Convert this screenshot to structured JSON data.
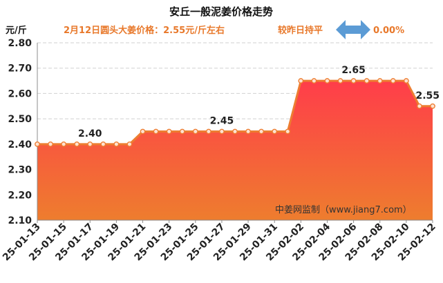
{
  "header": {
    "title": "安丘一般泥姜价格走势",
    "unit": "元/斤",
    "headline_price": "2月12日圆头大姜价格：2.55元/斤左右",
    "headline_trend": "较昨日持平",
    "headline_change": "0.00%",
    "trend_icon": "double-arrow-icon"
  },
  "watermark": "中姜网监制（www.jiang7.com）",
  "colors": {
    "headline": "#E8782A",
    "arrow": "#5B9BD5",
    "line": "#ED7D31",
    "fill_top": "#FF3D4A",
    "fill_bottom": "#EE7D2E",
    "grid": "#D0D0D0"
  },
  "chart_data": {
    "type": "area",
    "title": "安丘一般泥姜价格走势",
    "ylabel": "元/斤",
    "xlabel": "",
    "ylim": [
      2.1,
      2.8
    ],
    "yticks": [
      "2.10",
      "2.20",
      "2.30",
      "2.40",
      "2.50",
      "2.60",
      "2.70",
      "2.80"
    ],
    "grid": true,
    "x": [
      "25-01-13",
      "25-01-14",
      "25-01-15",
      "25-01-16",
      "25-01-17",
      "25-01-18",
      "25-01-19",
      "25-01-20",
      "25-01-21",
      "25-01-22",
      "25-01-23",
      "25-01-24",
      "25-01-25",
      "25-01-26",
      "25-01-27",
      "25-01-28",
      "25-01-29",
      "25-01-30",
      "25-01-31",
      "25-02-01",
      "25-02-02",
      "25-02-03",
      "25-02-04",
      "25-02-05",
      "25-02-06",
      "25-02-07",
      "25-02-08",
      "25-02-09",
      "25-02-10",
      "25-02-11",
      "25-02-12"
    ],
    "xtick_labels": [
      "25-01-13",
      "25-01-15",
      "25-01-17",
      "25-01-19",
      "25-01-21",
      "25-01-23",
      "25-01-25",
      "25-01-27",
      "25-01-29",
      "25-01-31",
      "25-02-02",
      "25-02-04",
      "25-02-06",
      "25-02-08",
      "25-02-10",
      "25-02-12"
    ],
    "values": [
      2.4,
      2.4,
      2.4,
      2.4,
      2.4,
      2.4,
      2.4,
      2.4,
      2.45,
      2.45,
      2.45,
      2.45,
      2.45,
      2.45,
      2.45,
      2.45,
      2.45,
      2.45,
      2.45,
      2.45,
      2.65,
      2.65,
      2.65,
      2.65,
      2.65,
      2.65,
      2.65,
      2.65,
      2.65,
      2.55,
      2.55
    ],
    "data_labels": [
      {
        "x": "25-01-17",
        "text": "2.40"
      },
      {
        "x": "25-01-27",
        "text": "2.45"
      },
      {
        "x": "25-02-06",
        "text": "2.65"
      },
      {
        "x": "25-02-12",
        "text": "2.55"
      }
    ]
  }
}
